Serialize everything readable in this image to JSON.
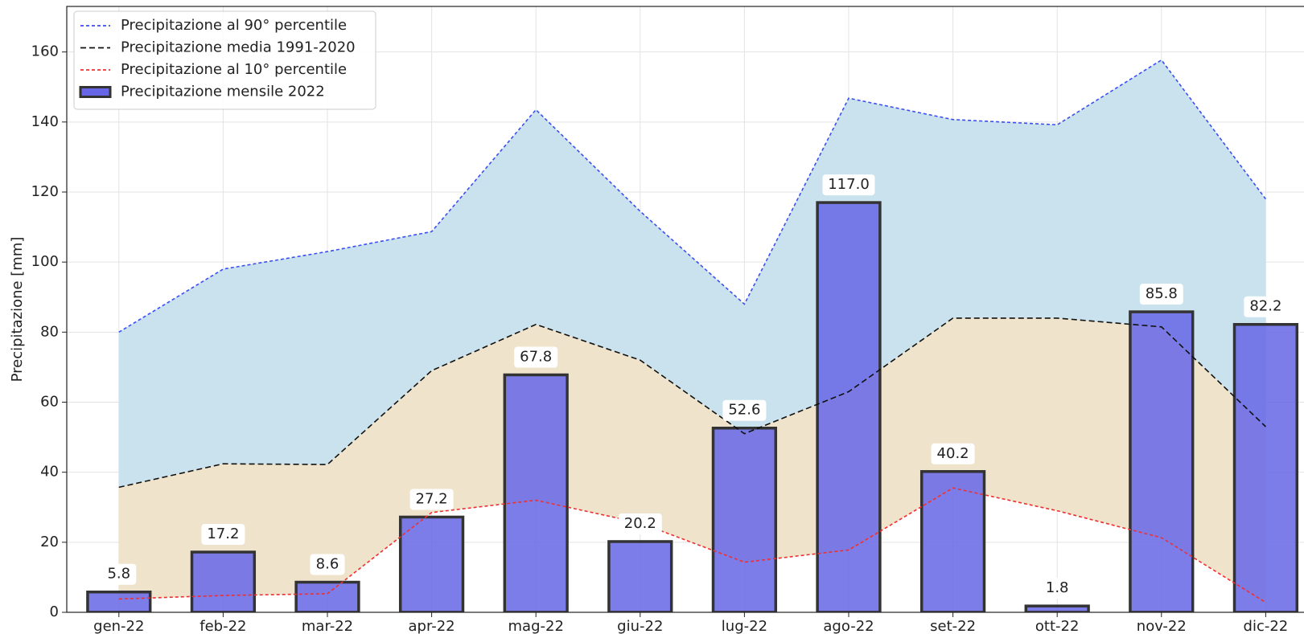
{
  "chart_data": {
    "type": "bar",
    "y_label": "Precipitazione [mm]",
    "categories": [
      "gen-22",
      "feb-22",
      "mar-22",
      "apr-22",
      "mag-22",
      "giu-22",
      "lug-22",
      "ago-22",
      "set-22",
      "ott-22",
      "nov-22",
      "dic-22"
    ],
    "series": [
      {
        "name": "Precipitazione al 90° percentile",
        "type": "line",
        "color": "#3b4ff0",
        "dash": "4 3",
        "values": [
          80,
          98,
          103,
          108.7,
          143.5,
          114.5,
          88,
          146.8,
          140.7,
          139.2,
          157.7,
          118
        ]
      },
      {
        "name": "Precipitazione media 1991-2020",
        "type": "line",
        "color": "#111111",
        "dash": "7 4",
        "values": [
          35.7,
          42.4,
          42.2,
          69,
          82.2,
          72,
          51,
          63,
          84,
          84,
          81.5,
          53
        ]
      },
      {
        "name": "Precipitazione al 10° percentile",
        "type": "line",
        "color": "#ee3030",
        "dash": "4 3",
        "values": [
          3.8,
          4.8,
          5.3,
          28.5,
          32,
          25.5,
          14.3,
          17.8,
          35.5,
          29,
          21.3,
          2.8
        ]
      },
      {
        "name": "Precipitazione mensile 2022",
        "type": "bar",
        "color": "#6666e6",
        "edge": "#333333",
        "values": [
          5.8,
          17.2,
          8.6,
          27.2,
          67.8,
          20.2,
          52.6,
          117,
          40.2,
          1.8,
          85.8,
          82.2
        ],
        "value_labels": [
          "5.8",
          "17.2",
          "8.6",
          "27.2",
          "67.8",
          "20.2",
          "52.6",
          "117.0",
          "40.2",
          "1.8",
          "85.8",
          "82.2"
        ]
      }
    ],
    "area_colors": [
      "#c9e2ed",
      "#efe3cc"
    ],
    "ylim": [
      0,
      173
    ],
    "yticks": [
      0,
      20,
      40,
      60,
      80,
      100,
      120,
      140,
      160
    ],
    "grid": true,
    "legend": "upper left"
  }
}
